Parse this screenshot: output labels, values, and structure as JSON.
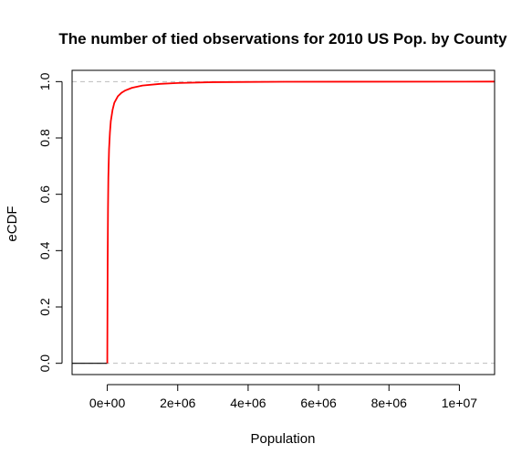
{
  "chart_data": {
    "type": "line",
    "title": "The number of tied observations for 2010 US Pop. by County",
    "xlabel": "Population",
    "ylabel": "eCDF",
    "xlim": [
      -1000000,
      11000000
    ],
    "ylim": [
      -0.04,
      1.04
    ],
    "x_ticks": [
      0,
      2000000,
      4000000,
      6000000,
      8000000,
      10000000
    ],
    "x_tick_labels": [
      "0e+00",
      "2e+06",
      "4e+06",
      "6e+06",
      "8e+06",
      "1e+07"
    ],
    "y_ticks": [
      0,
      0.2,
      0.4,
      0.6,
      0.8,
      1.0
    ],
    "y_tick_labels": [
      "0.0",
      "0.2",
      "0.4",
      "0.6",
      "0.8",
      "1.0"
    ],
    "reference_lines": [
      0,
      1
    ],
    "grid": false,
    "series": [
      {
        "color": "#ff0000",
        "x": [
          -1000000,
          0,
          0,
          10000,
          20000,
          30000,
          50000,
          75000,
          100000,
          150000,
          200000,
          300000,
          400000,
          500000,
          700000,
          1000000,
          1500000,
          2000000,
          3000000,
          5000000,
          11000000
        ],
        "y": [
          0,
          0,
          0.02,
          0.35,
          0.55,
          0.66,
          0.76,
          0.82,
          0.86,
          0.9,
          0.925,
          0.948,
          0.96,
          0.968,
          0.978,
          0.986,
          0.992,
          0.995,
          0.998,
          0.9995,
          1.0
        ]
      }
    ]
  }
}
